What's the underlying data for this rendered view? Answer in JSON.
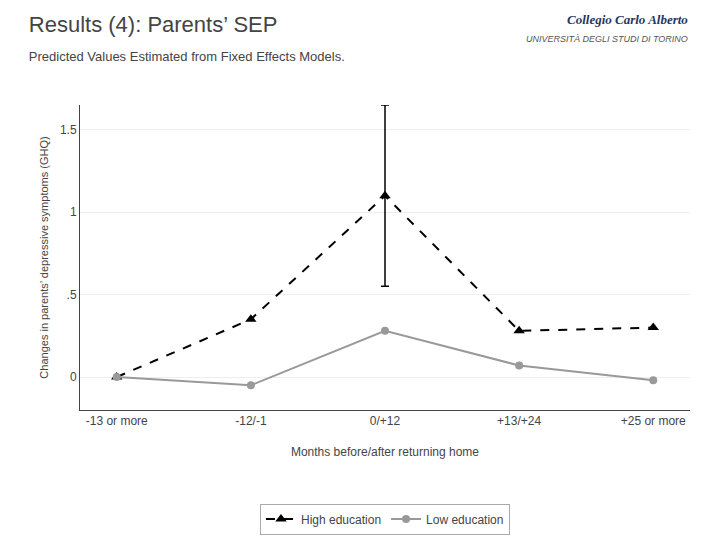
{
  "chart_data": {
    "type": "line",
    "title": "Results (4): Parents’ SEP",
    "subtitle": "Predicted Values Estimated from Fixed Effects Models.",
    "xlabel": "Months before/after returning home",
    "ylabel": "Changes in parents’ depressive symptoms (GHQ)",
    "categories": [
      "-13 or more",
      "-12/-1",
      "0/+12",
      "+13/+24",
      "+25 or more"
    ],
    "series": [
      {
        "name": "High education",
        "color": "#000000",
        "marker": "triangle-up",
        "line_style": "dash",
        "values": [
          0.0,
          0.35,
          1.1,
          0.28,
          0.3
        ],
        "error_lower": [
          null,
          null,
          0.55,
          null,
          null
        ],
        "error_upper": [
          null,
          null,
          0.55,
          null,
          null
        ]
      },
      {
        "name": "Low education",
        "color": "#999999",
        "marker": "circle",
        "line_style": "solid",
        "values": [
          0.0,
          -0.05,
          0.28,
          0.07,
          -0.02
        ]
      }
    ],
    "ylim": [
      -0.2,
      1.65
    ],
    "yticks": [
      0,
      {
        "value": 0.5,
        "label": ".5"
      },
      1,
      1.5
    ],
    "grid": true,
    "legend": "bottom",
    "annotations": [
      {
        "text": "Collegio Carlo Alberto"
      },
      {
        "text": "UNIVERSITÀ DEGLI STUDI DI TORINO"
      }
    ]
  }
}
